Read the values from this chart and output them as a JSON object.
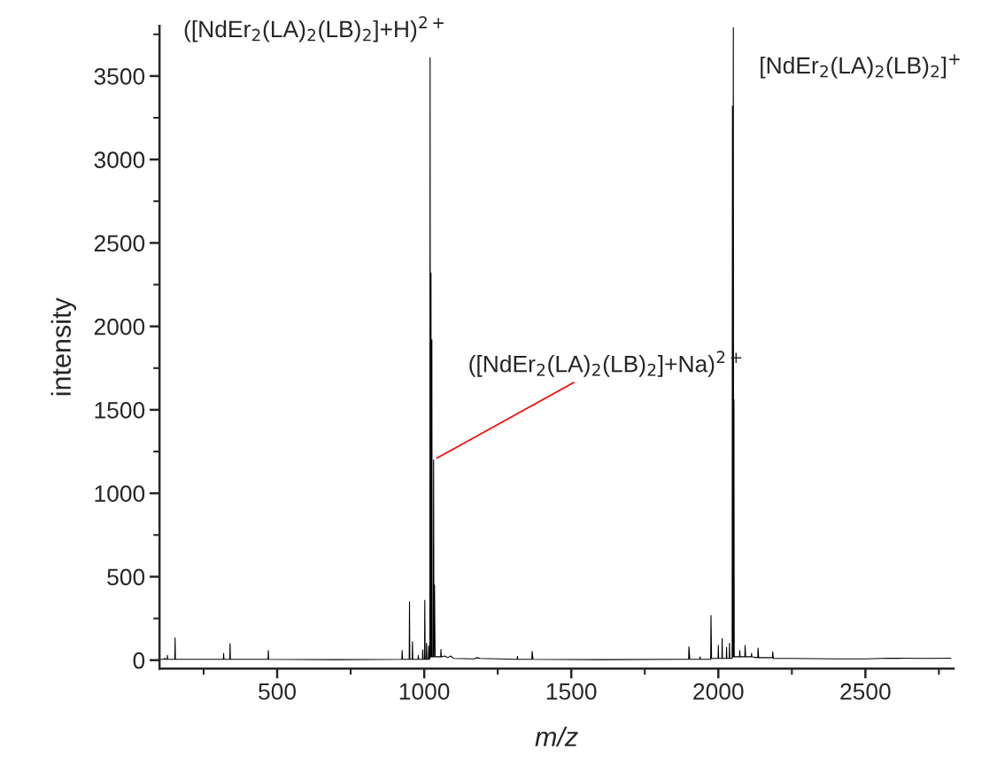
{
  "chart_data": {
    "type": "line",
    "xlabel": "m/z",
    "ylabel": "intensity",
    "xlim": [
      100,
      2800
    ],
    "ylim": [
      -50,
      3800
    ],
    "xticks": [
      {
        "value": 250,
        "label": null
      },
      500,
      {
        "value": 750,
        "label": null
      },
      1000,
      {
        "value": 1250,
        "label": null
      },
      1500,
      {
        "value": 1750,
        "label": null
      },
      2000,
      {
        "value": 2250,
        "label": null
      },
      2500,
      {
        "value": 2750,
        "label": null
      }
    ],
    "yticks": [
      0,
      {
        "value": 250,
        "label": null
      },
      500,
      {
        "value": 750,
        "label": null
      },
      1000,
      {
        "value": 1250,
        "label": null
      },
      1500,
      {
        "value": 1750,
        "label": null
      },
      2000,
      {
        "value": 2250,
        "label": null
      },
      2500,
      {
        "value": 2750,
        "label": null
      },
      3000,
      {
        "value": 3250,
        "label": null
      },
      3500,
      {
        "value": 3750,
        "label": null
      }
    ],
    "grid": false,
    "marker": "none",
    "line_style": "solid",
    "series": [
      {
        "color": "#000000",
        "x": [
          100,
          116,
          118,
          120,
          126,
          127,
          128,
          152,
          153,
          154,
          317,
          318,
          319,
          339,
          340,
          341,
          469,
          470,
          471,
          700,
          924,
          925,
          926,
          949,
          950,
          951,
          959,
          960,
          961,
          979,
          980,
          981,
          994,
          995,
          996,
          1001,
          1002,
          1003,
          1007,
          1008,
          1009,
          1014,
          1015,
          1016,
          1019,
          1020,
          1021,
          1023,
          1024,
          1026,
          1027,
          1031,
          1032,
          1033,
          1035,
          1037,
          1040,
          1056,
          1057,
          1058,
          1070,
          1080,
          1090,
          1100,
          1170,
          1180,
          1190,
          1316,
          1317,
          1318,
          1366,
          1367,
          1370,
          1600,
          1899,
          1900,
          1903,
          1937,
          1938,
          1939,
          1974,
          1975,
          1977,
          1999,
          2000,
          2001,
          2012,
          2013,
          2014,
          2027,
          2028,
          2029,
          2037,
          2038,
          2039,
          2047,
          2048,
          2049,
          2051,
          2052,
          2053,
          2054,
          2056,
          2072,
          2073,
          2074,
          2090,
          2091,
          2093,
          2112,
          2113,
          2114,
          2134,
          2135,
          2137,
          2184,
          2185,
          2187,
          2250,
          2400,
          2500,
          2580,
          2700,
          2790
        ],
        "values": [
          5,
          5,
          12,
          5,
          5,
          28,
          5,
          5,
          133,
          5,
          5,
          40,
          5,
          5,
          99,
          5,
          5,
          58,
          5,
          3,
          5,
          58,
          5,
          5,
          350,
          5,
          5,
          111,
          5,
          5,
          28,
          5,
          5,
          62,
          5,
          5,
          359,
          5,
          5,
          102,
          5,
          5,
          85,
          5,
          10,
          3610,
          20,
          2320,
          20,
          1920,
          20,
          20,
          1200,
          20,
          450,
          20,
          20,
          20,
          64,
          20,
          25,
          15,
          25,
          10,
          8,
          15,
          10,
          5,
          23,
          5,
          5,
          53,
          5,
          3,
          5,
          80,
          5,
          5,
          20,
          5,
          5,
          267,
          10,
          10,
          90,
          10,
          10,
          129,
          10,
          10,
          76,
          10,
          10,
          102,
          10,
          10,
          3320,
          20,
          3790,
          20,
          1560,
          20,
          20,
          20,
          58,
          20,
          20,
          88,
          20,
          20,
          40,
          20,
          15,
          72,
          15,
          15,
          50,
          10,
          10,
          8,
          8,
          12,
          10,
          12
        ]
      }
    ],
    "annotations": [
      "([NdEr$_{2}$(LA)$_{2}$(LB)$_{2}$]+H)$^{2+}$",
      "[NdEr$_{2}$(LA)$_{2}$(LB)$_{2}$]$^{+}$",
      {
        "text": "([NdEr$_{2}$(LA)$_{2}$(LB)$_{2}$]+Na)$^{2+}$",
        "x": 1032,
        "y": 1200
      }
    ]
  }
}
